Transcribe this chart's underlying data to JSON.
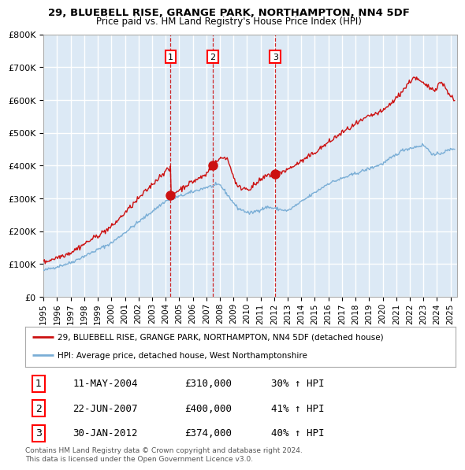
{
  "title": "29, BLUEBELL RISE, GRANGE PARK, NORTHAMPTON, NN4 5DF",
  "subtitle": "Price paid vs. HM Land Registry's House Price Index (HPI)",
  "plot_bg_color": "#dce9f5",
  "grid_color": "#ffffff",
  "hpi_color": "#7aaed6",
  "price_color": "#cc1111",
  "marker_color": "#cc1111",
  "dashed_color": "#cc1111",
  "ylim": [
    0,
    800000
  ],
  "yticks": [
    0,
    100000,
    200000,
    300000,
    400000,
    500000,
    600000,
    700000,
    800000
  ],
  "ytick_labels": [
    "£0",
    "£100K",
    "£200K",
    "£300K",
    "£400K",
    "£500K",
    "£600K",
    "£700K",
    "£800K"
  ],
  "xlim_start": 1995.0,
  "xlim_end": 2025.5,
  "xtick_years": [
    1995,
    1996,
    1997,
    1998,
    1999,
    2000,
    2001,
    2002,
    2003,
    2004,
    2005,
    2006,
    2007,
    2008,
    2009,
    2010,
    2011,
    2012,
    2013,
    2014,
    2015,
    2016,
    2017,
    2018,
    2019,
    2020,
    2021,
    2022,
    2023,
    2024,
    2025
  ],
  "sale_dates": [
    2004.36,
    2007.47,
    2012.08
  ],
  "sale_prices": [
    310000,
    400000,
    374000
  ],
  "sale_labels": [
    "1",
    "2",
    "3"
  ],
  "legend_price_label": "29, BLUEBELL RISE, GRANGE PARK, NORTHAMPTON, NN4 5DF (detached house)",
  "legend_hpi_label": "HPI: Average price, detached house, West Northamptonshire",
  "table_data": [
    [
      "1",
      "11-MAY-2004",
      "£310,000",
      "30% ↑ HPI"
    ],
    [
      "2",
      "22-JUN-2007",
      "£400,000",
      "41% ↑ HPI"
    ],
    [
      "3",
      "30-JAN-2012",
      "£374,000",
      "40% ↑ HPI"
    ]
  ],
  "footnote": "Contains HM Land Registry data © Crown copyright and database right 2024.\nThis data is licensed under the Open Government Licence v3.0."
}
